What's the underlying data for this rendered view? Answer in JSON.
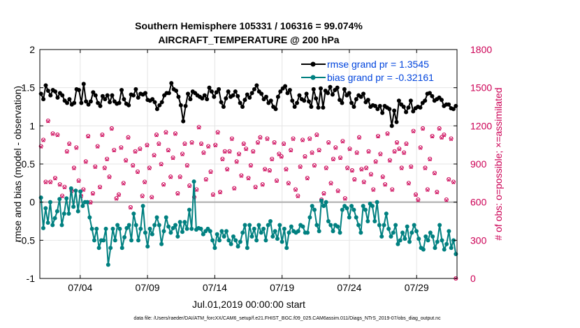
{
  "chart_data": {
    "type": "line",
    "title": "Southern Hemisphere 105331 / 106316 = 99.074%",
    "subtitle": "AIRCRAFT_TEMPERATURE @ 200 hPa",
    "xlabel": "Jul.01,2019 00:00:00 start",
    "ylabel": "rmse and bias (model - observation)",
    "y2label": "# of obs: o=possible; ×=assimilated",
    "footnote": "data file: /Users/raeder/DAI/ATM_forcXX/CAM6_setup/f.e21.FHIST_BGC.f09_025.CAM6assim.011/Diags_NTrS_2019-07/obs_diag_output.nc",
    "xlim": [
      0,
      31
    ],
    "ylim": [
      -1,
      2
    ],
    "y2lim": [
      0,
      1800
    ],
    "x_ticks": [
      3,
      8,
      13,
      18,
      23,
      28
    ],
    "x_tick_labels": [
      "07/04",
      "07/09",
      "07/14",
      "07/19",
      "07/24",
      "07/29"
    ],
    "y_ticks": [
      -1,
      -0.5,
      0,
      0.5,
      1,
      1.5,
      2
    ],
    "y_tick_labels": [
      "-1",
      "-0.5",
      "0",
      "0.5",
      "1",
      "1.5",
      "2"
    ],
    "y2_ticks": [
      0,
      300,
      600,
      900,
      1200,
      1500,
      1800
    ],
    "y2_tick_labels": [
      "0",
      "300",
      "600",
      "900",
      "1200",
      "1500",
      "1800"
    ],
    "grid": true,
    "legend_position": "top-right",
    "colors": {
      "rmse": "#000000",
      "bias": "#008080",
      "obs": "#cc0055",
      "legend": "#0044dd",
      "zero_line": "#aaaaaa"
    },
    "series": [
      {
        "name": "rmse grand pr = 1.3545",
        "role": "rmse",
        "values": [
          1.42,
          1.35,
          1.53,
          1.46,
          1.4,
          1.47,
          1.45,
          1.37,
          1.43,
          1.4,
          1.33,
          1.3,
          1.35,
          1.28,
          1.3,
          1.48,
          1.47,
          1.3,
          1.55,
          1.32,
          1.28,
          1.32,
          1.44,
          1.4,
          1.3,
          1.26,
          1.39,
          1.35,
          1.4,
          1.31,
          1.4,
          1.32,
          1.29,
          1.3,
          1.47,
          1.35,
          1.29,
          1.27,
          1.41,
          1.4,
          1.48,
          1.37,
          1.42,
          1.41,
          1.43,
          1.34,
          1.33,
          1.35,
          1.31,
          1.22,
          1.27,
          1.31,
          1.4,
          1.43,
          1.43,
          1.56,
          1.48,
          1.46,
          1.38,
          1.27,
          1.06,
          1.26,
          1.42,
          1.35,
          1.45,
          1.43,
          1.4,
          1.38,
          1.36,
          1.4,
          1.35,
          1.5,
          1.45,
          1.38,
          1.44,
          1.48,
          1.31,
          1.25,
          1.36,
          1.45,
          1.38,
          1.4,
          1.45,
          1.39,
          1.3,
          1.25,
          1.34,
          1.41,
          1.37,
          1.43,
          1.48,
          1.53,
          1.45,
          1.42,
          1.35,
          1.38,
          1.3,
          1.33,
          1.25,
          1.22,
          1.38,
          1.45,
          1.49,
          1.52,
          1.43,
          1.47,
          1.33,
          1.25,
          1.3,
          1.4,
          1.35,
          1.33,
          1.42,
          1.32,
          1.25,
          1.48,
          1.36,
          1.24,
          1.49,
          1.24,
          1.46,
          1.43,
          1.51,
          1.41,
          1.47,
          1.5,
          1.34,
          1.3,
          1.48,
          1.4,
          1.43,
          1.3,
          1.25,
          1.35,
          1.4,
          1.38,
          1.42,
          1.31,
          1.34,
          1.25,
          1.27,
          1.26,
          1.22,
          1.26,
          1.17,
          1.26,
          1.24,
          1.22,
          1.0,
          1.2,
          1.05,
          1.33,
          1.28,
          1.25,
          1.18,
          1.24,
          1.33,
          1.19,
          1.23,
          1.25,
          1.24,
          1.3,
          1.33,
          1.42,
          1.43,
          1.39,
          1.33,
          1.35,
          1.37,
          1.34,
          1.26,
          1.28,
          1.28,
          1.23,
          1.22,
          1.26
        ]
      },
      {
        "name": "bias grand pr = -0.32161",
        "role": "bias",
        "values": [
          0.06,
          -0.34,
          -0.08,
          -0.27,
          0.0,
          -0.3,
          -0.21,
          -0.12,
          0.04,
          -0.3,
          -0.15,
          0.05,
          -0.15,
          0.18,
          -0.06,
          0.15,
          -0.12,
          0.14,
          -0.05,
          0.0,
          0.0,
          -0.2,
          -0.35,
          -0.5,
          -0.35,
          -0.6,
          -0.5,
          -0.5,
          -0.35,
          -0.82,
          -0.6,
          -0.35,
          -0.5,
          -0.3,
          -0.35,
          -0.6,
          -0.46,
          -0.34,
          -0.3,
          -0.5,
          -0.15,
          -0.3,
          -0.5,
          -0.35,
          -0.05,
          -0.4,
          -0.58,
          -0.35,
          -0.42,
          -0.3,
          -0.2,
          -0.3,
          -0.55,
          -0.38,
          -0.2,
          -0.32,
          -0.4,
          -0.34,
          -0.3,
          -0.45,
          -0.26,
          -0.39,
          -0.26,
          -0.35,
          -0.1,
          -0.35,
          0.27,
          -0.36,
          -0.34,
          -0.35,
          -0.42,
          -0.38,
          -0.35,
          -0.38,
          -0.5,
          -0.6,
          -0.42,
          -0.5,
          -0.38,
          -0.45,
          -0.38,
          -0.5,
          -0.55,
          -0.45,
          -0.5,
          -0.58,
          -0.52,
          -0.4,
          -0.3,
          -0.6,
          -0.3,
          -0.45,
          -0.35,
          -0.5,
          -0.3,
          -0.4,
          -0.35,
          -0.5,
          -0.3,
          -0.25,
          -0.45,
          -0.38,
          -0.48,
          -0.3,
          -0.52,
          -0.35,
          -0.6,
          -0.4,
          -0.32,
          -0.38,
          -0.4,
          -0.38,
          -0.3,
          -0.32,
          -0.4,
          -0.4,
          -0.2,
          -0.05,
          -0.1,
          -0.3,
          -0.38,
          0.02,
          -0.05,
          0.0,
          -0.25,
          -0.3,
          -0.38,
          -0.3,
          -0.32,
          -0.4,
          -0.1,
          -0.05,
          -0.08,
          -0.2,
          -0.05,
          -0.1,
          -0.2,
          -0.3,
          -0.4,
          -0.05,
          -0.1,
          -0.25,
          -0.02,
          -0.05,
          -0.25,
          0.0,
          -0.3,
          -0.45,
          -0.3,
          -0.15,
          -0.35,
          -0.45,
          -0.4,
          -0.3,
          -0.55,
          -0.5,
          -0.4,
          -0.48,
          -0.32,
          -0.52,
          -0.4,
          -0.3,
          -0.38,
          -0.48,
          -0.6,
          -0.62,
          -0.45,
          -0.5,
          -0.4,
          -0.45,
          -0.6,
          -0.52,
          -0.3,
          -0.5,
          -0.62,
          -0.55,
          -0.38,
          -0.6,
          -0.5,
          -0.68
        ]
      }
    ],
    "obs_possible": {
      "name": "# of obs possible",
      "values": [
        1040,
        1090,
        760,
        1240,
        760,
        1140,
        790,
        1130,
        740,
        650,
        720,
        1000,
        1060,
        690,
        870,
        1030,
        770,
        650,
        700,
        920,
        1120,
        600,
        670,
        880,
        1040,
        720,
        1130,
        870,
        940,
        800,
        1180,
        1010,
        630,
        660,
        1030,
        750,
        930,
        1110,
        560,
        890,
        1000,
        840,
        1020,
        650,
        760,
        1050,
        870,
        640,
        970,
        1130,
        1060,
        900,
        740,
        1150,
        1010,
        800,
        950,
        1140,
        670,
        800,
        980,
        1060,
        890,
        730,
        1070,
        640,
        700,
        1190,
        1060,
        990,
        780,
        1040,
        840,
        660,
        1050,
        1150,
        680,
        940,
        1000,
        860,
        1000,
        1100,
        710,
        920,
        980,
        810,
        1060,
        1020,
        790,
        890,
        1000,
        720,
        1070,
        1110,
        740,
        860,
        1100,
        850,
        940,
        1070,
        770,
        980,
        960,
        1060,
        860,
        750,
        1010,
        1100,
        700,
        650,
        880,
        1090,
        960,
        790,
        1100,
        990,
        890,
        1130,
        1010,
        620,
        670,
        870,
        1070,
        750,
        940,
        1030,
        690,
        950,
        1080,
        630,
        870,
        1020,
        850,
        780,
        990,
        1110,
        860,
        760,
        870,
        1000,
        820,
        700,
        920,
        1120,
        980,
        800,
        740,
        1140,
        930,
        700,
        1000,
        1070,
        1020,
        870,
        990,
        1060,
        750,
        880,
        1160,
        660,
        620,
        1030,
        1180,
        870,
        700,
        940,
        1120,
        830,
        680,
        1180,
        1110,
        1130,
        620,
        780,
        1100,
        760,
        0
      ]
    },
    "obs_assimilated": {
      "name": "# of obs assimilated",
      "values": [
        1035,
        1085,
        755,
        1235,
        755,
        1135,
        785,
        1125,
        735,
        645,
        715,
        995,
        1055,
        685,
        865,
        1025,
        765,
        645,
        695,
        915,
        1115,
        595,
        665,
        875,
        1035,
        715,
        1125,
        865,
        935,
        795,
        1175,
        1005,
        625,
        655,
        1025,
        745,
        925,
        1105,
        555,
        885,
        995,
        835,
        1015,
        645,
        755,
        1045,
        865,
        635,
        965,
        1125,
        1055,
        895,
        735,
        1145,
        1005,
        795,
        945,
        1135,
        665,
        795,
        975,
        1055,
        885,
        725,
        1065,
        635,
        695,
        1185,
        1055,
        985,
        775,
        1035,
        835,
        655,
        1045,
        1145,
        675,
        935,
        995,
        855,
        995,
        1095,
        705,
        915,
        975,
        805,
        1055,
        1015,
        785,
        885,
        995,
        715,
        1065,
        1105,
        735,
        855,
        1095,
        845,
        935,
        1065,
        765,
        975,
        955,
        1055,
        855,
        745,
        1005,
        1095,
        695,
        645,
        875,
        1085,
        955,
        785,
        1095,
        985,
        885,
        1125,
        1005,
        615,
        665,
        865,
        1065,
        745,
        935,
        1025,
        685,
        945,
        1075,
        625,
        865,
        1015,
        845,
        775,
        985,
        1105,
        855,
        755,
        865,
        995,
        815,
        695,
        915,
        1115,
        975,
        795,
        735,
        1135,
        925,
        695,
        995,
        1065,
        1015,
        865,
        985,
        1055,
        745,
        875,
        1155,
        655,
        615,
        1025,
        1175,
        865,
        695,
        935,
        1115,
        825,
        675,
        1175,
        1105,
        1125,
        615,
        775,
        1095,
        755,
        0
      ]
    }
  }
}
